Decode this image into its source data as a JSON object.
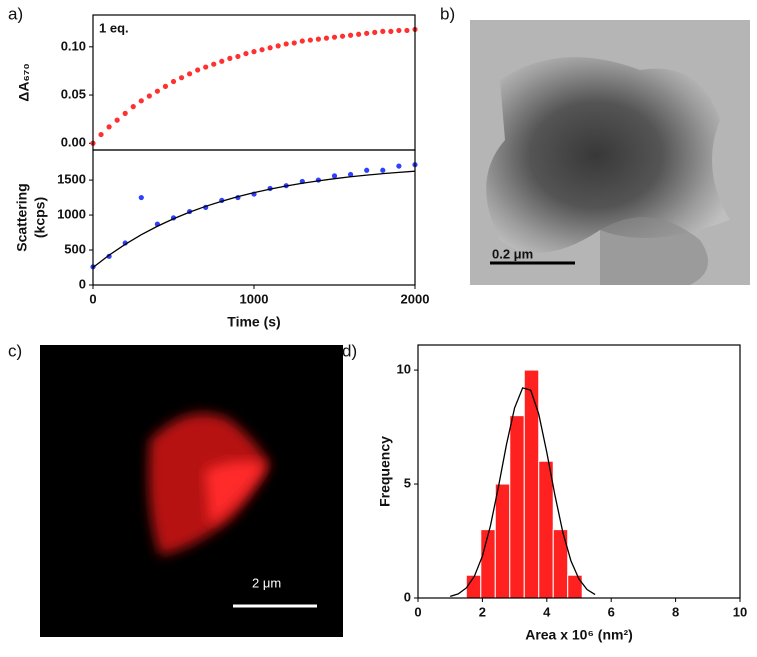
{
  "chart_data": [
    {
      "type": "scatter",
      "panel_label": "a)",
      "annotation": "1 eq.",
      "ylabel": "ΔA₆₇₀",
      "x": [
        0,
        50,
        100,
        150,
        200,
        250,
        300,
        350,
        400,
        450,
        500,
        550,
        600,
        650,
        700,
        750,
        800,
        850,
        900,
        950,
        1000,
        1050,
        1100,
        1150,
        1200,
        1250,
        1300,
        1350,
        1400,
        1450,
        1500,
        1550,
        1600,
        1650,
        1700,
        1750,
        1800,
        1850,
        1900,
        1950,
        2000
      ],
      "xlim": [
        0,
        2000
      ],
      "ylim": [
        -0.007,
        0.133
      ],
      "yticks": [
        {
          "value": 0,
          "label": "0.00"
        },
        {
          "value": 0.05,
          "label": "0.05"
        },
        {
          "value": 0.1,
          "label": "0.10"
        }
      ],
      "series": [
        {
          "color": "#ff3030",
          "values": [
            0,
            0.009,
            0.017,
            0.024,
            0.031,
            0.038,
            0.044,
            0.049,
            0.054,
            0.059,
            0.064,
            0.068,
            0.072,
            0.076,
            0.079,
            0.082,
            0.085,
            0.088,
            0.09,
            0.093,
            0.095,
            0.097,
            0.099,
            0.101,
            0.103,
            0.104,
            0.106,
            0.107,
            0.108,
            0.109,
            0.11,
            0.111,
            0.112,
            0.113,
            0.114,
            0.115,
            0.116,
            0.116,
            0.117,
            0.117,
            0.118
          ]
        }
      ]
    },
    {
      "type": "scatter",
      "ylabel": [
        "Scattering",
        "(kcps)"
      ],
      "xlabel": "Time (s)",
      "x": [
        0,
        100,
        200,
        300,
        400,
        500,
        600,
        700,
        800,
        900,
        1000,
        1100,
        1200,
        1300,
        1400,
        1500,
        1600,
        1700,
        1800,
        1900,
        2000
      ],
      "xlim": [
        0,
        2000
      ],
      "xticks": [
        0,
        1000,
        2000
      ],
      "ylim": [
        0,
        1930
      ],
      "yticks": [
        0,
        500,
        1000,
        1500
      ],
      "series": [
        {
          "color": "#3040ff",
          "values": [
            260,
            410,
            600,
            1250,
            870,
            960,
            1050,
            1110,
            1210,
            1250,
            1300,
            1380,
            1420,
            1480,
            1500,
            1560,
            1580,
            1640,
            1640,
            1700,
            1720
          ]
        },
        {
          "type": "line",
          "color": "#000000",
          "values": [
            250,
            427,
            582,
            719,
            840,
            947,
            1042,
            1125,
            1198,
            1263,
            1320,
            1371,
            1416,
            1455,
            1489,
            1520,
            1547,
            1571,
            1592,
            1610,
            1627
          ]
        }
      ]
    },
    {
      "type": "histogram",
      "panel_label": "d)",
      "xlabel": "Area x 10⁶ (nm²)",
      "ylabel": "Frequency",
      "bins": [
        1.5,
        1.95,
        2.4,
        2.85,
        3.3,
        3.75,
        4.2,
        4.65,
        5.1
      ],
      "values": [
        1,
        3,
        5,
        8,
        10,
        6,
        3,
        1
      ],
      "color": "#ff2020",
      "fit": {
        "color": "#000000",
        "x": [
          1,
          1.25,
          1.5,
          1.75,
          2,
          2.25,
          2.5,
          2.75,
          3,
          3.25,
          3.5,
          3.75,
          4,
          4.25,
          4.5,
          4.75,
          5,
          5.25,
          5.5
        ],
        "values": [
          0.07,
          0.18,
          0.44,
          0.95,
          1.84,
          3.17,
          4.89,
          6.75,
          8.34,
          9.22,
          9.12,
          8.07,
          6.39,
          4.53,
          2.87,
          1.63,
          0.83,
          0.37,
          0.15
        ]
      },
      "xlim": [
        0,
        10
      ],
      "xticks": [
        0,
        2,
        4,
        6,
        8,
        10
      ],
      "ylim": [
        0,
        11.1
      ],
      "yticks": [
        0,
        5,
        10
      ]
    }
  ],
  "images": [
    {
      "panel_label": "b)",
      "scale_bar": "0.2 μm"
    },
    {
      "panel_label": "c)",
      "scale_bar": "2 μm"
    }
  ]
}
